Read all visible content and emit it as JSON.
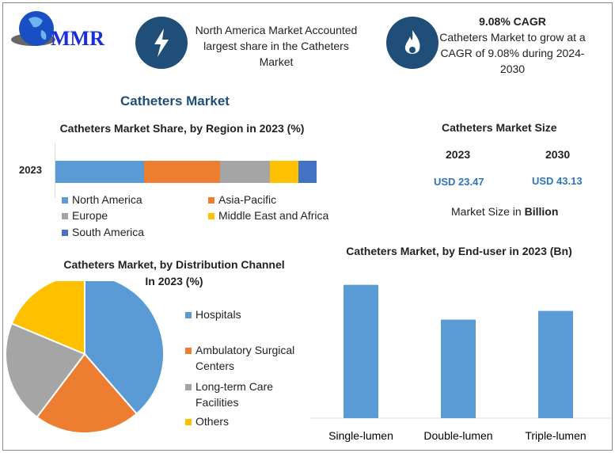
{
  "logo": {
    "text": "MMR"
  },
  "header": {
    "card1": {
      "icon": "lightning-icon",
      "text": "North America Market Accounted largest share in the Catheters Market"
    },
    "card2": {
      "icon": "flame-icon",
      "title": "9.08% CAGR",
      "text": "Catheters Market to grow at a CAGR of 9.08% during 2024-2030"
    }
  },
  "main_title": "Catheters Market",
  "market_size": {
    "title": "Catheters Market Size",
    "years": [
      "2023",
      "2030"
    ],
    "values": [
      "USD 23.47",
      "USD 43.13"
    ],
    "note_prefix": "Market Size in ",
    "note_unit": "Billion"
  },
  "colors": {
    "blue": "#5b9bd5",
    "orange": "#ed7d31",
    "gray": "#a5a5a5",
    "yellow": "#ffc000",
    "darkblue": "#4472c4"
  },
  "chart_data": [
    {
      "type": "bar",
      "orientation": "horizontal-stacked",
      "title": "Catheters Market Share, by Region in 2023 (%)",
      "categories": [
        "2023"
      ],
      "series": [
        {
          "name": "North America",
          "values": [
            34
          ]
        },
        {
          "name": "Asia-Pacific",
          "values": [
            29
          ]
        },
        {
          "name": "Europe",
          "values": [
            19
          ]
        },
        {
          "name": "Middle East and Africa",
          "values": [
            11
          ]
        },
        {
          "name": "South America",
          "values": [
            7
          ]
        }
      ],
      "legend": "bottom"
    },
    {
      "type": "pie",
      "title": "Catheters Market, by Distribution Channel In 2023 (%)",
      "labels": [
        "Hospitals",
        "Ambulatory Surgical Centers",
        "Long-term Care Facilities",
        "Others"
      ],
      "values": [
        38.6,
        21.7,
        21,
        18.7
      ],
      "legend": "right"
    },
    {
      "type": "bar",
      "title": "Catheters Market, by End-user in 2023 (Bn)",
      "categories": [
        "Single-lumen",
        "Double-lumen",
        "Triple-lumen"
      ],
      "values": [
        9.2,
        6.8,
        7.4
      ],
      "ylim": [
        0,
        10
      ]
    }
  ]
}
